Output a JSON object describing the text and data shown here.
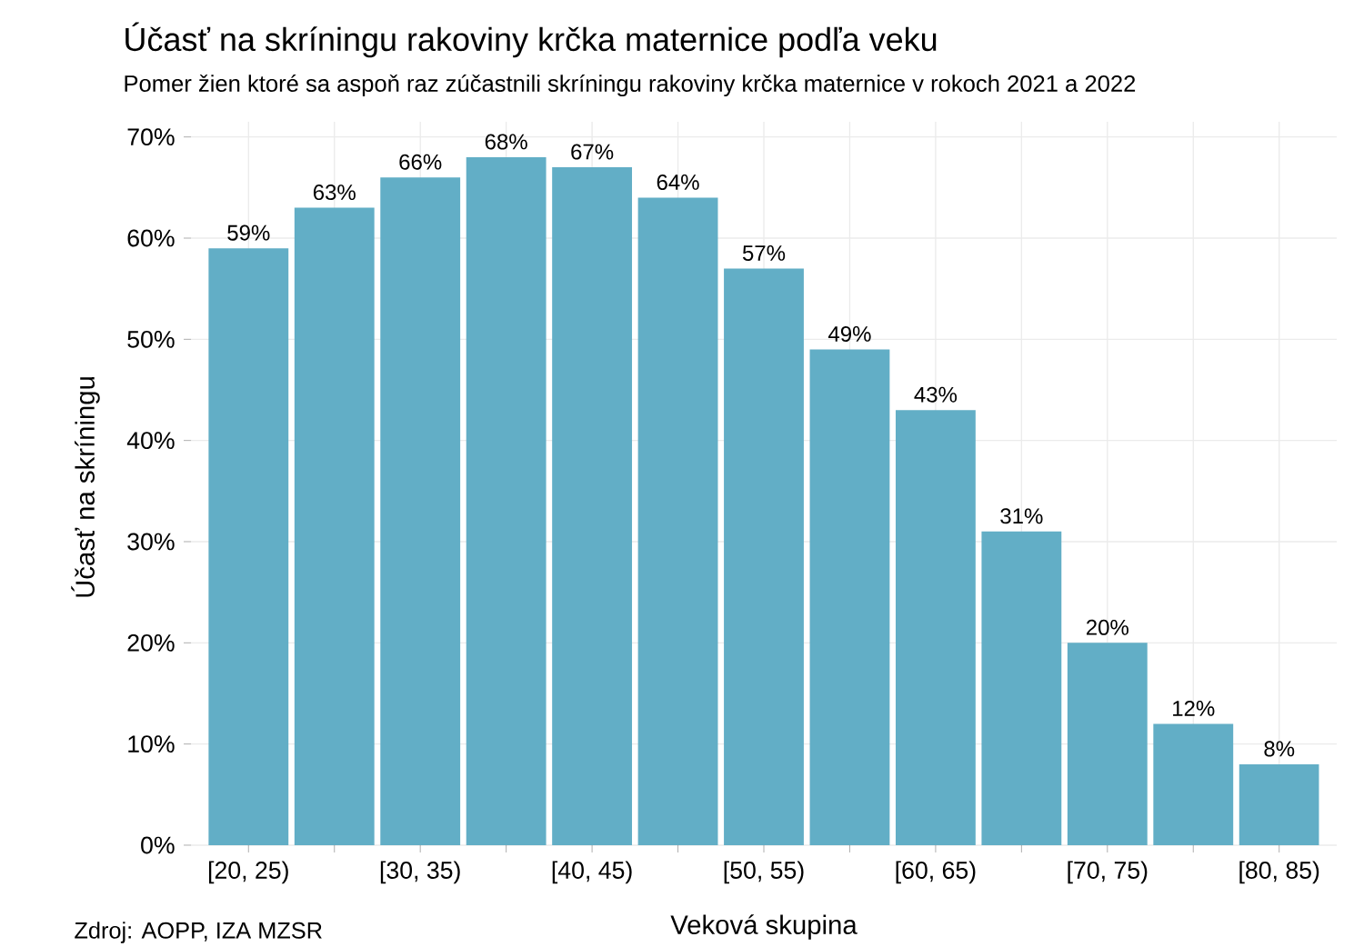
{
  "chart_data": {
    "type": "bar",
    "title": "Účasť na skríningu rakoviny krčka maternice podľa veku",
    "subtitle": "Pomer žien ktoré sa aspoň raz zúčastnili skríningu rakoviny krčka maternice v rokoch 2021 a 2022",
    "xlabel": "Veková skupina",
    "ylabel": "Účasť na skríningu",
    "annotations": [
      "Zdroj: AOPP, IZA MZSR"
    ],
    "categories": [
      "[20, 25)",
      null,
      "[30, 35)",
      null,
      "[40, 45)",
      null,
      "[50, 55)",
      null,
      "[60, 65)",
      null,
      "[70, 75)",
      null,
      "[80, 85)"
    ],
    "values": [
      59,
      63,
      66,
      68,
      67,
      64,
      57,
      49,
      43,
      31,
      20,
      12,
      8
    ],
    "value_labels": [
      "59%",
      "63%",
      "66%",
      "68%",
      "67%",
      "64%",
      "57%",
      "49%",
      "43%",
      "31%",
      "20%",
      "12%",
      "8%"
    ],
    "color": "#62aec6",
    "ylim": [
      0,
      71.5
    ],
    "yticks": [
      {
        "value": 0,
        "label": "0%"
      },
      {
        "value": 10,
        "label": "10%"
      },
      {
        "value": 20,
        "label": "20%"
      },
      {
        "value": 30,
        "label": "30%"
      },
      {
        "value": 40,
        "label": "40%"
      },
      {
        "value": 50,
        "label": "50%"
      },
      {
        "value": 60,
        "label": "60%"
      },
      {
        "value": 70,
        "label": "70%"
      }
    ],
    "grid": true
  }
}
